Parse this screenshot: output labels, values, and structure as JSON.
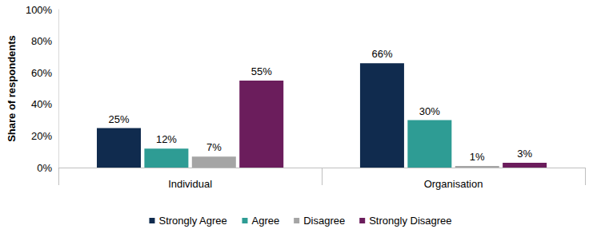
{
  "chart_data": {
    "type": "bar",
    "y_label": "Share of respondents",
    "categories": [
      "Individual",
      "Organisation"
    ],
    "series": [
      {
        "name": "Strongly Agree",
        "color": "#102b4e",
        "values": [
          25,
          66
        ],
        "value_labels": [
          "25%",
          "66%"
        ]
      },
      {
        "name": "Agree",
        "color": "#2e9c94",
        "values": [
          12,
          30
        ],
        "value_labels": [
          "12%",
          "30%"
        ]
      },
      {
        "name": "Disagree",
        "color": "#a5a5a5",
        "values": [
          7,
          1
        ],
        "value_labels": [
          "7%",
          "1%"
        ]
      },
      {
        "name": "Strongly Disagree",
        "color": "#6b1d5c",
        "values": [
          55,
          3
        ],
        "value_labels": [
          "55%",
          "3%"
        ]
      }
    ],
    "ylim": [
      0,
      100
    ],
    "yticks": [
      {
        "value": 0,
        "label": "0%"
      },
      {
        "value": 20,
        "label": "20%"
      },
      {
        "value": 40,
        "label": "40%"
      },
      {
        "value": 60,
        "label": "60%"
      },
      {
        "value": 80,
        "label": "80%"
      },
      {
        "value": 100,
        "label": "100%"
      }
    ],
    "grid": false,
    "legend": "bottom",
    "data_labels": true
  }
}
